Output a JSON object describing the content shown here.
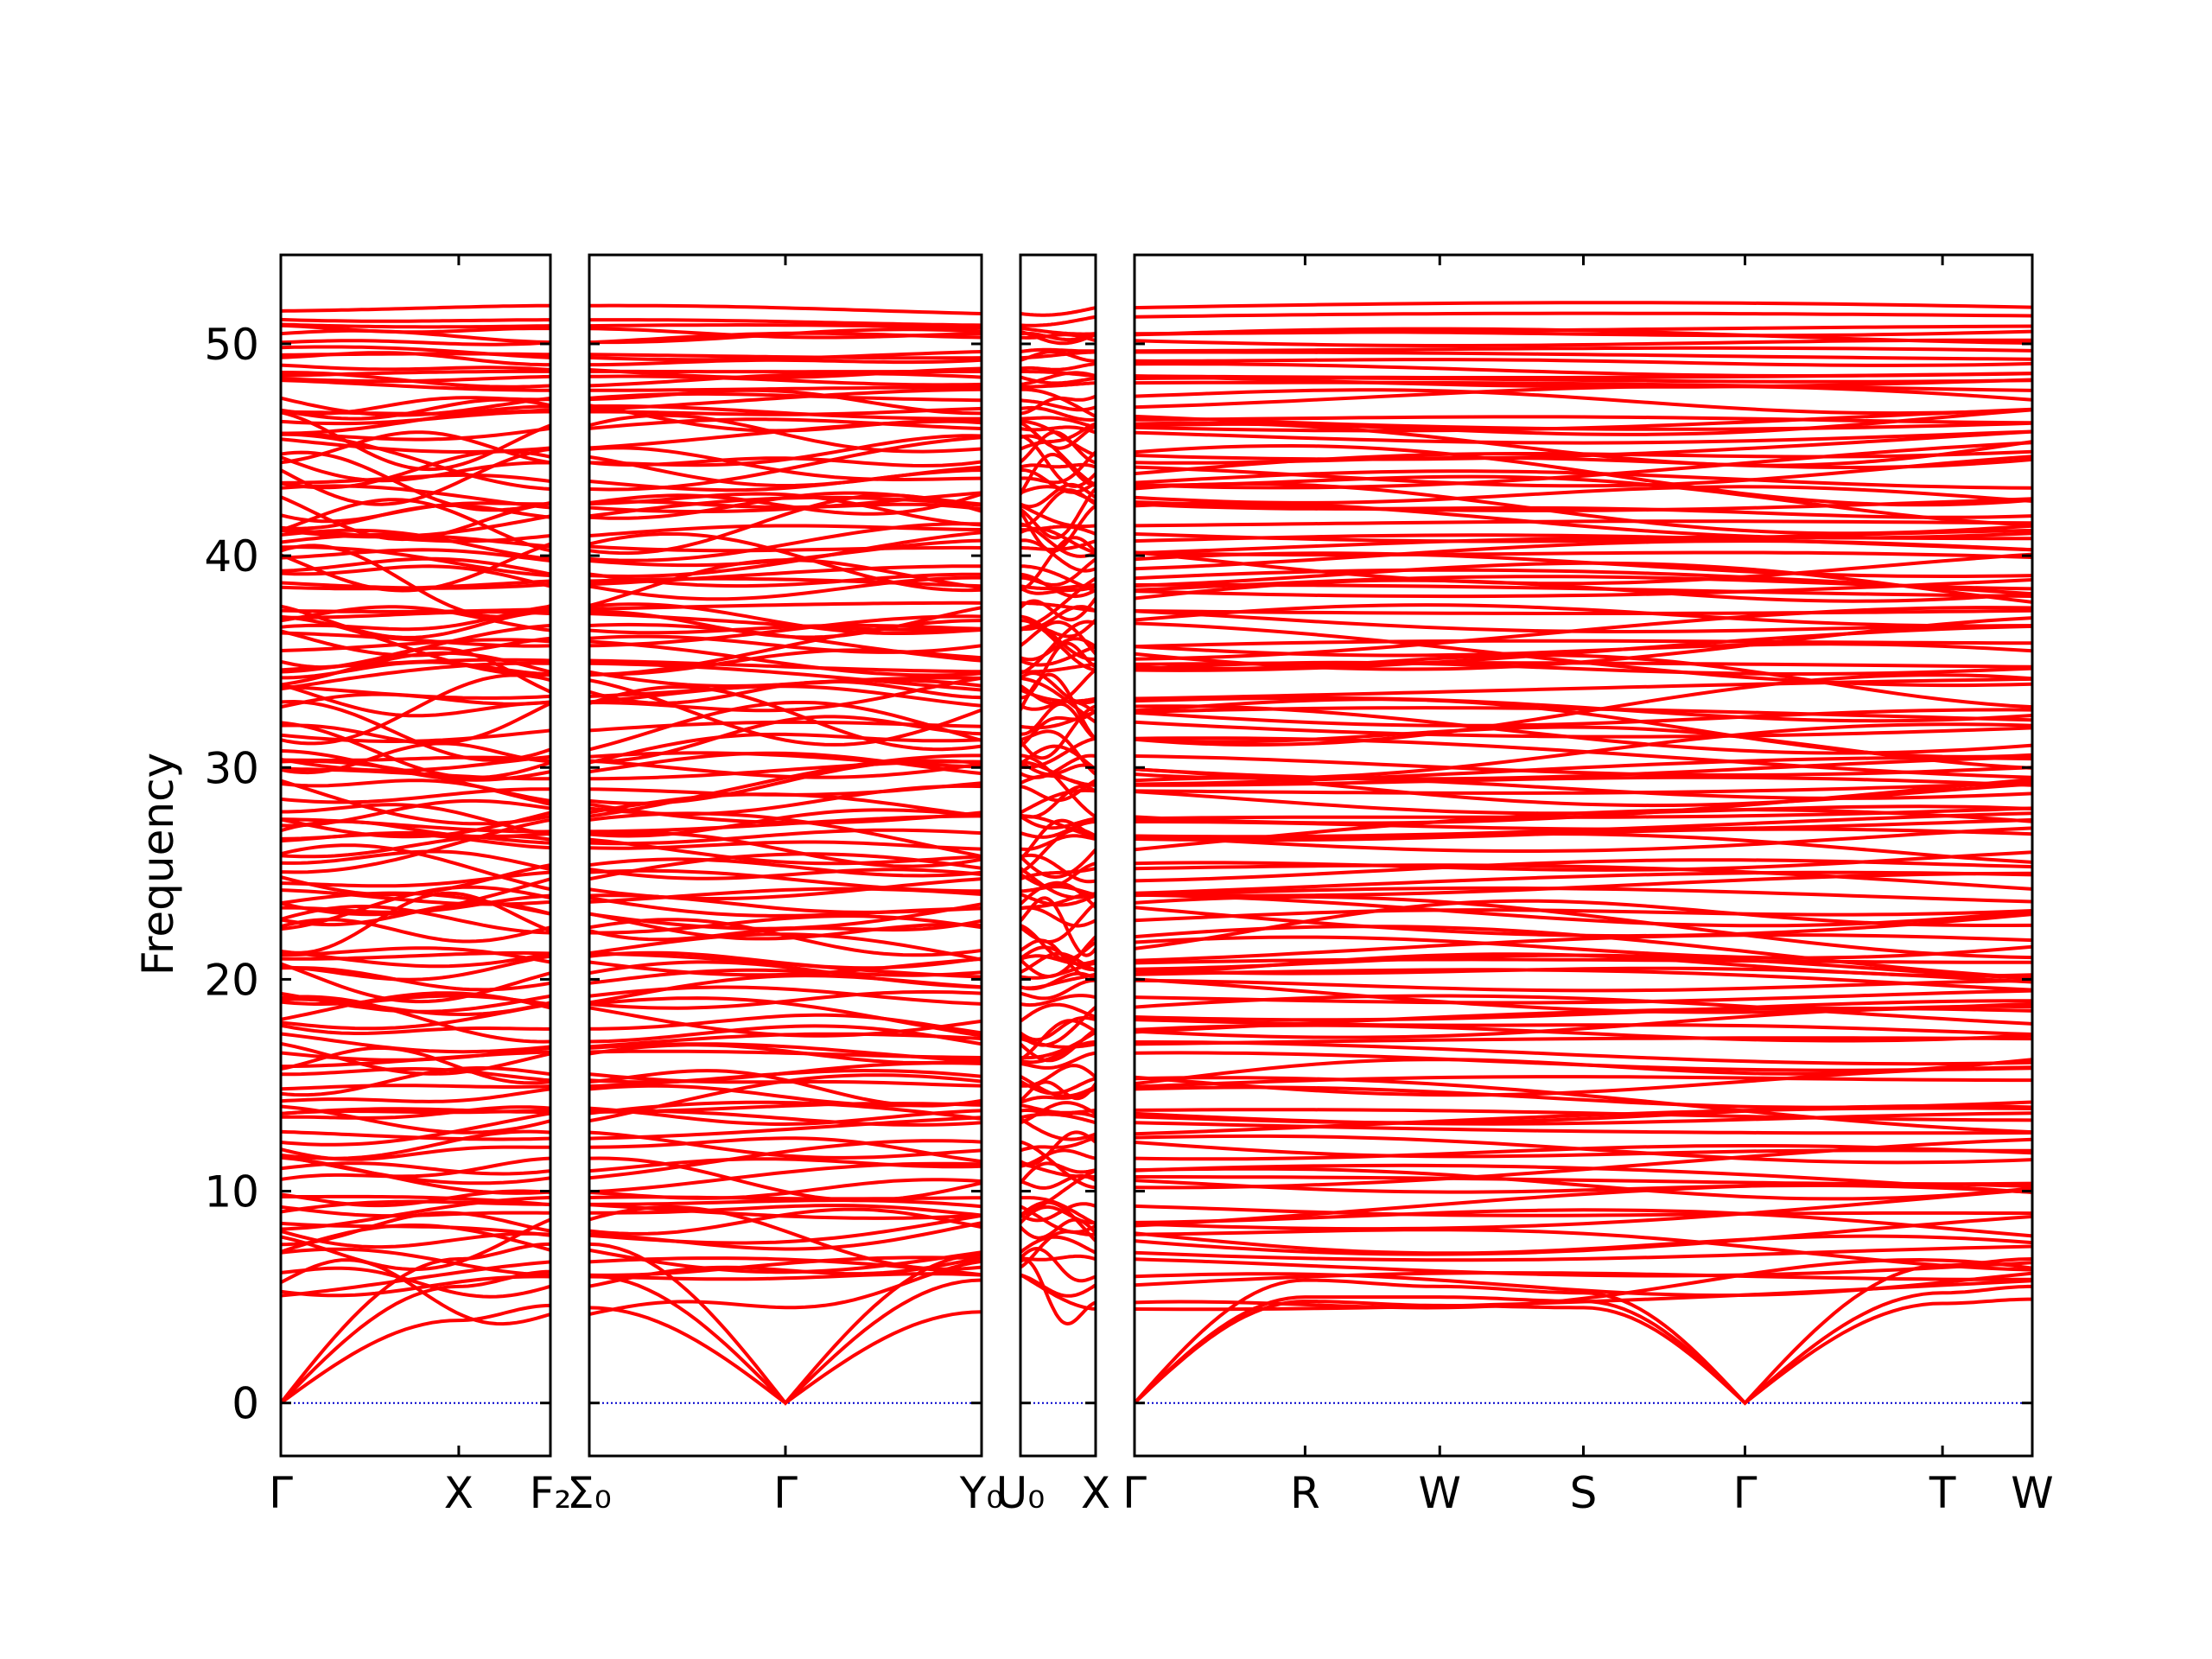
{
  "chart_data": {
    "type": "line",
    "title": "",
    "xlabel": "",
    "ylabel": "Frequency",
    "ylim": [
      -2.5,
      54.2
    ],
    "yticks": [
      0,
      10,
      20,
      30,
      40,
      50
    ],
    "grid": false,
    "legend": "none",
    "line_color": "#ff0000",
    "zero_line_color": "#0000cc",
    "panels": [
      {
        "name": "panel-1",
        "xticks": [
          {
            "label": "Γ",
            "x": 0.0
          },
          {
            "label": "X",
            "x": 0.66
          },
          {
            "label": "F₂",
            "x": 1.0
          }
        ],
        "acoustic": [
          {
            "x": [
              0.0,
              0.66,
              1.0
            ],
            "y": [
              0.0,
              6.8,
              7.5
            ]
          },
          {
            "x": [
              0.0,
              0.66,
              1.0
            ],
            "y": [
              0.0,
              5.5,
              6.2
            ]
          },
          {
            "x": [
              0.0,
              0.66,
              1.0
            ],
            "y": [
              0.0,
              3.9,
              4.6
            ]
          }
        ]
      },
      {
        "name": "panel-2",
        "xticks": [
          {
            "label": "Σ₀",
            "x": 0.0
          },
          {
            "label": "Γ",
            "x": 0.5
          },
          {
            "label": "Y₀",
            "x": 1.0
          }
        ],
        "acoustic": [
          {
            "x": [
              0.0,
              0.5,
              1.0
            ],
            "y": [
              7.5,
              0.0,
              7.0
            ]
          },
          {
            "x": [
              0.0,
              0.5,
              1.0
            ],
            "y": [
              6.0,
              0.0,
              5.8
            ]
          },
          {
            "x": [
              0.0,
              0.5,
              1.0
            ],
            "y": [
              4.5,
              0.0,
              4.3
            ]
          }
        ]
      },
      {
        "name": "panel-3",
        "xticks": [
          {
            "label": "U₀",
            "x": 0.0
          },
          {
            "label": "X",
            "x": 1.0
          }
        ],
        "acoustic": []
      },
      {
        "name": "panel-4",
        "xticks": [
          {
            "label": "Γ",
            "x": 0.0
          },
          {
            "label": "R",
            "x": 0.19
          },
          {
            "label": "W",
            "x": 0.34
          },
          {
            "label": "S",
            "x": 0.5
          },
          {
            "label": "Γ",
            "x": 0.68
          },
          {
            "label": "T",
            "x": 0.9
          },
          {
            "label": "W",
            "x": 1.0
          }
        ],
        "acoustic": [
          {
            "x": [
              0.0,
              0.19,
              0.34,
              0.5,
              0.68,
              0.9,
              1.0
            ],
            "y": [
              0.0,
              5.8,
              5.5,
              5.2,
              0.0,
              6.5,
              6.8
            ]
          },
          {
            "x": [
              0.0,
              0.19,
              0.34,
              0.5,
              0.68,
              0.9,
              1.0
            ],
            "y": [
              0.0,
              5.0,
              5.0,
              4.8,
              0.0,
              5.2,
              5.5
            ]
          },
          {
            "x": [
              0.0,
              0.19,
              0.34,
              0.5,
              0.68,
              0.9,
              1.0
            ],
            "y": [
              0.0,
              4.8,
              4.6,
              4.5,
              0.0,
              4.7,
              4.9
            ]
          }
        ]
      }
    ],
    "optical_band_range": [
      5.0,
      51.6
    ],
    "optical_band_count": 150
  }
}
